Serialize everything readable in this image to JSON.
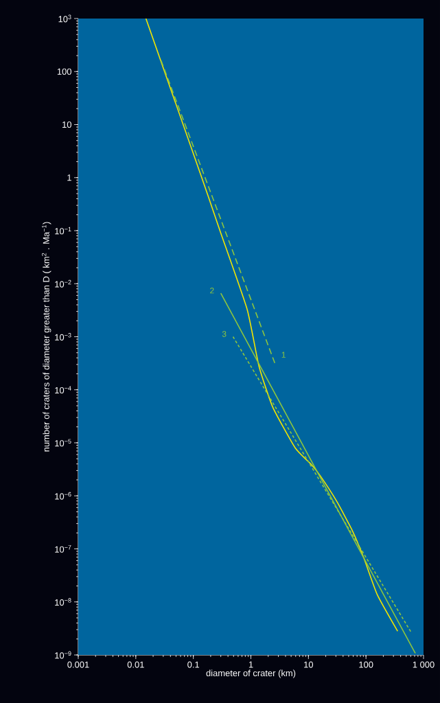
{
  "chart_data": {
    "type": "line",
    "xlabel": "diameter of crater (km)",
    "ylabel": "number of craters of diameter greater than D ( km$^{2}$ . Ma$^{−1}$)",
    "log": "xy",
    "xlim": [
      0.001,
      1000
    ],
    "ylim": [
      1e-09,
      1000
    ],
    "xticks": [
      0.001,
      0.01,
      0.1,
      1,
      10,
      100,
      {
        "value": 1000,
        "label": "1 000"
      }
    ],
    "yticks": [
      {
        "value": 1e-09,
        "label": "10$^{−9}$"
      },
      {
        "value": 1e-08,
        "label": "10$^{−8}$"
      },
      {
        "value": 1e-07,
        "label": "10$^{−7}$"
      },
      {
        "value": 1e-06,
        "label": "10$^{−6}$"
      },
      {
        "value": 1e-05,
        "label": "10$^{−5}$"
      },
      {
        "value": 0.0001,
        "label": "10$^{−4}$"
      },
      {
        "value": 0.001,
        "label": "10$^{−3}$"
      },
      {
        "value": 0.01,
        "label": "10$^{−2}$"
      },
      {
        "value": 0.1,
        "label": "10$^{−1}$"
      },
      1,
      10,
      100,
      {
        "value": 1000,
        "label": "10$^{3}$"
      }
    ],
    "series": [
      {
        "color": "#f2e600",
        "line_style": "solid",
        "x": [
          0.015,
          0.14,
          0.29,
          0.86,
          1.38,
          2.4,
          5.9,
          11.2,
          16,
          31,
          58,
          92,
          158,
          355
        ],
        "values": [
          1000,
          1,
          0.1,
          0.0033,
          0.00028,
          4.7e-05,
          8e-06,
          3.9e-06,
          2.4e-06,
          7.9e-07,
          2.2e-07,
          6.7e-08,
          1.35e-08,
          2.8e-09
        ]
      },
      {
        "name": "1",
        "color": "#8cc63f",
        "line_style": "dashed",
        "x": [
          2.6,
          0.026
        ],
        "values": [
          0.00032,
          190
        ]
      },
      {
        "name": "2",
        "color": "#8cc63f",
        "line_style": "solid",
        "x": [
          0.3,
          720
        ],
        "values": [
          0.0066,
          1.07e-09
        ]
      },
      {
        "name": "3",
        "color": "#8cc63f",
        "line_style": "dotted",
        "x": [
          0.49,
          600
        ],
        "values": [
          0.001,
          2.75e-09
        ]
      }
    ]
  }
}
